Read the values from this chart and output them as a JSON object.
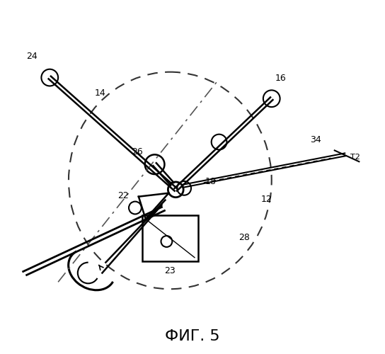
{
  "title": "ФИГ. 5",
  "title_fontsize": 16,
  "bg_color": "#ffffff",
  "lc": "#000000",
  "gray": "#444444"
}
